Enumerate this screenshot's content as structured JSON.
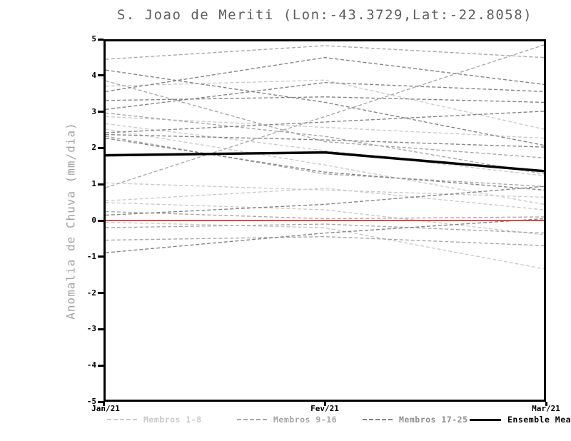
{
  "title": "S. Joao de Meriti (Lon:-43.3729,Lat:-22.8058)",
  "chart_data": {
    "type": "line",
    "title": "S. Joao de Meriti (Lon:-43.3729,Lat:-22.8058)",
    "xlabel": "",
    "ylabel": "Anomalia de Chuva (mm/dia)",
    "ylim": [
      -5,
      5
    ],
    "ytick_step": 1,
    "yticks": [
      5,
      4,
      3,
      2,
      1,
      0,
      -1,
      -2,
      -3,
      -4,
      -5
    ],
    "categories": [
      "Jan/21",
      "Fev/21",
      "Mar/21"
    ],
    "grid": false,
    "legend_position": "bottom",
    "line_style_members": "dashed",
    "zero_line": {
      "color": "#e84545",
      "values": [
        0,
        0,
        0
      ]
    },
    "mean": {
      "label": "Ensemble Mean",
      "color": "#000000",
      "values": [
        1.82,
        1.9,
        1.38
      ]
    },
    "groups": [
      {
        "label": "Membros 1-8",
        "color": "#cbcbcb",
        "series": [
          {
            "name": "1",
            "values": [
              3.75,
              3.92,
              2.55
            ]
          },
          {
            "name": "2",
            "values": [
              2.9,
              2.6,
              2.3
            ]
          },
          {
            "name": "3",
            "values": [
              2.7,
              1.95,
              1.25
            ]
          },
          {
            "name": "4",
            "values": [
              2.55,
              1.55,
              0.45
            ]
          },
          {
            "name": "5",
            "values": [
              1.05,
              0.85,
              0.65
            ]
          },
          {
            "name": "6",
            "values": [
              0.55,
              0.9,
              0.3
            ]
          },
          {
            "name": "7",
            "values": [
              0.5,
              0.3,
              -0.4
            ]
          },
          {
            "name": "8",
            "values": [
              -0.05,
              -0.2,
              -1.35
            ]
          }
        ]
      },
      {
        "label": "Membros 9-16",
        "color": "#a8a8a8",
        "series": [
          {
            "name": "9",
            "values": [
              4.5,
              4.88,
              4.55
            ]
          },
          {
            "name": "10",
            "values": [
              0.92,
              2.9,
              4.9
            ]
          },
          {
            "name": "11",
            "values": [
              3.9,
              2.2,
              1.75
            ]
          },
          {
            "name": "12",
            "values": [
              3.0,
              2.35,
              1.3
            ]
          },
          {
            "name": "13",
            "values": [
              2.35,
              1.3,
              0.95
            ]
          },
          {
            "name": "14",
            "values": [
              0.25,
              0.05,
              0.1
            ]
          },
          {
            "name": "15",
            "values": [
              -0.2,
              -0.1,
              -0.35
            ]
          },
          {
            "name": "16",
            "values": [
              -0.55,
              -0.45,
              -0.7
            ]
          }
        ]
      },
      {
        "label": "Membros 17-25",
        "color": "#848484",
        "series": [
          {
            "name": "17",
            "values": [
              4.2,
              3.3,
              2.1
            ]
          },
          {
            "name": "18",
            "values": [
              3.6,
              4.55,
              3.8
            ]
          },
          {
            "name": "19",
            "values": [
              3.1,
              3.85,
              3.6
            ]
          },
          {
            "name": "20",
            "values": [
              3.35,
              3.45,
              3.3
            ]
          },
          {
            "name": "21",
            "values": [
              2.45,
              2.75,
              3.05
            ]
          },
          {
            "name": "22",
            "values": [
              2.4,
              2.25,
              2.05
            ]
          },
          {
            "name": "23",
            "values": [
              2.3,
              1.35,
              0.85
            ]
          },
          {
            "name": "24",
            "values": [
              0.15,
              0.45,
              0.95
            ]
          },
          {
            "name": "25",
            "values": [
              -0.9,
              -0.35,
              0.05
            ]
          }
        ]
      }
    ]
  },
  "legend": {
    "label_colors": [
      "#c9c9c9",
      "#a5a5a5",
      "#8e8e8e",
      "#000000"
    ]
  }
}
